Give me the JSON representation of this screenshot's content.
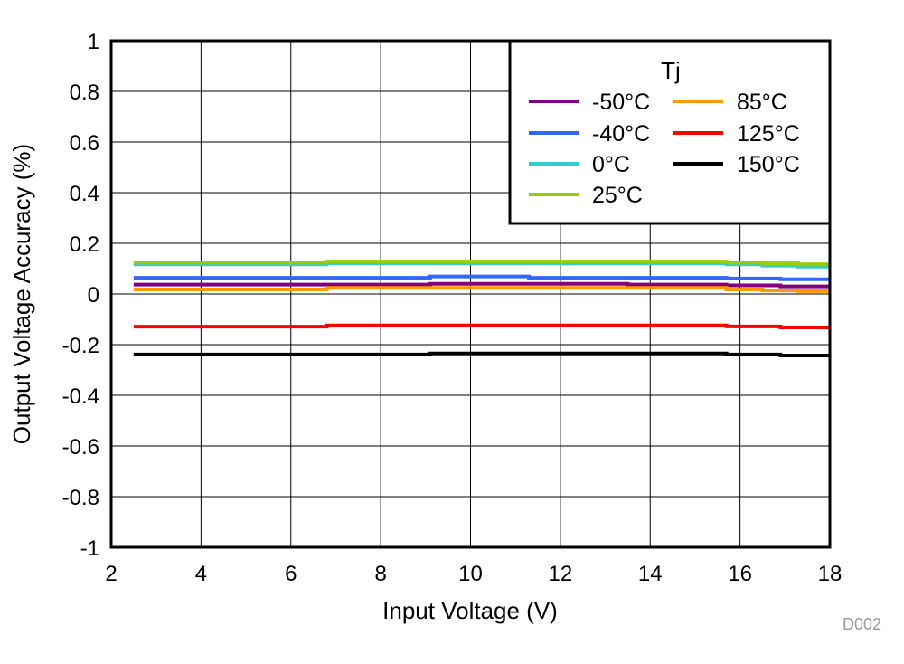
{
  "chart_data": {
    "type": "line",
    "title": "",
    "xlabel": "Input Voltage (V)",
    "ylabel": "Output Voltage Accuracy (%)",
    "xlim": [
      2,
      18
    ],
    "ylim": [
      -1,
      1
    ],
    "xticks": [
      "2",
      "4",
      "6",
      "8",
      "10",
      "12",
      "14",
      "16",
      "18"
    ],
    "yticks": [
      "1",
      "0.8",
      "0.6",
      "0.4",
      "0.2",
      "0",
      "-0.2",
      "-0.4",
      "-0.6",
      "-0.8",
      "-1"
    ],
    "grid": true,
    "step": true,
    "legend": {
      "title": "Tj",
      "placement": "top-right"
    },
    "x": [
      2.5,
      6.8,
      9.1,
      11.3,
      13.5,
      15.7,
      16.5,
      16.9,
      17.3,
      18
    ],
    "series": [
      {
        "name": "-50°C",
        "color": "#800080",
        "values": [
          0.037,
          0.037,
          0.04,
          0.04,
          0.037,
          0.034,
          0.034,
          0.03,
          0.03,
          0.03
        ]
      },
      {
        "name": "-40°C",
        "color": "#3366ff",
        "values": [
          0.064,
          0.064,
          0.069,
          0.064,
          0.064,
          0.061,
          0.061,
          0.058,
          0.058,
          0.058
        ]
      },
      {
        "name": "0°C",
        "color": "#33cccc",
        "values": [
          0.117,
          0.121,
          0.121,
          0.121,
          0.121,
          0.117,
          0.112,
          0.112,
          0.108,
          0.108
        ]
      },
      {
        "name": "25°C",
        "color": "#99cc00",
        "values": [
          0.124,
          0.128,
          0.128,
          0.128,
          0.128,
          0.124,
          0.121,
          0.121,
          0.117,
          0.117
        ]
      },
      {
        "name": "85°C",
        "color": "#ff9900",
        "values": [
          0.018,
          0.024,
          0.024,
          0.024,
          0.024,
          0.018,
          0.014,
          0.014,
          0.011,
          0.011
        ]
      },
      {
        "name": "125°C",
        "color": "#ff0000",
        "values": [
          -0.129,
          -0.124,
          -0.124,
          -0.124,
          -0.124,
          -0.128,
          -0.128,
          -0.132,
          -0.132,
          -0.132
        ]
      },
      {
        "name": "150°C",
        "color": "#000000",
        "values": [
          -0.239,
          -0.239,
          -0.235,
          -0.235,
          -0.235,
          -0.239,
          -0.239,
          -0.243,
          -0.243,
          -0.243
        ]
      }
    ],
    "annotation": "D002"
  }
}
